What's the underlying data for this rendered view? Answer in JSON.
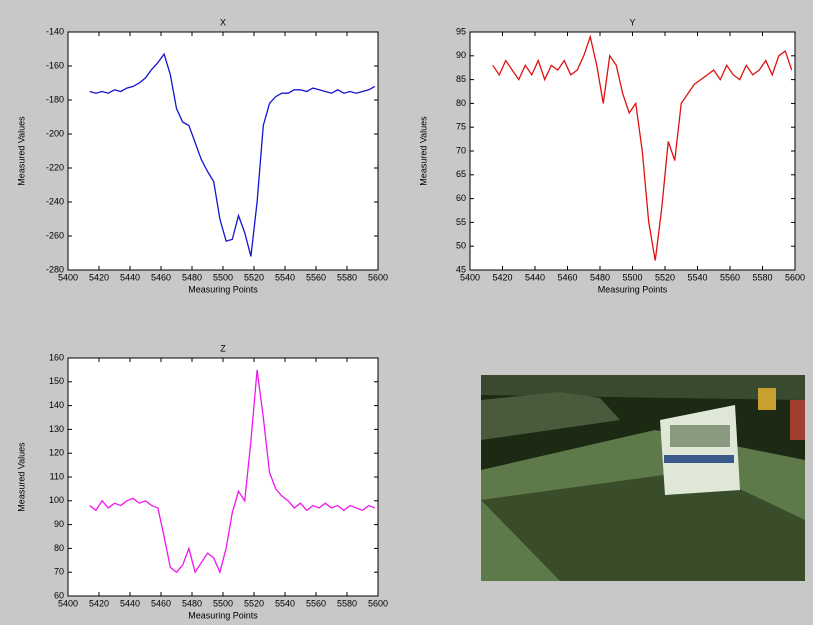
{
  "chart_data": [
    {
      "type": "line",
      "title": "X",
      "x_label": "Measuring Points",
      "y_label": "Measured Values",
      "x": [
        5414,
        5418,
        5422,
        5426,
        5430,
        5434,
        5438,
        5442,
        5446,
        5450,
        5454,
        5458,
        5462,
        5466,
        5470,
        5474,
        5478,
        5482,
        5486,
        5490,
        5494,
        5498,
        5502,
        5506,
        5510,
        5514,
        5518,
        5522,
        5526,
        5530,
        5534,
        5538,
        5542,
        5546,
        5550,
        5554,
        5558,
        5562,
        5566,
        5570,
        5574,
        5578,
        5582,
        5586,
        5590,
        5594,
        5598
      ],
      "series": [
        {
          "color": "#1414d2",
          "values": [
            -175,
            -176,
            -175,
            -176,
            -174,
            -175,
            -173,
            -172,
            -170,
            -167,
            -162,
            -158,
            -153,
            -165,
            -185,
            -193,
            -195,
            -205,
            -215,
            -222,
            -228,
            -250,
            -263,
            -262,
            -248,
            -258,
            -272,
            -240,
            -195,
            -182,
            -178,
            -176,
            -176,
            -174,
            -174,
            -175,
            -173,
            -174,
            -175,
            -176,
            -174,
            -176,
            -175,
            -176,
            -175,
            -174,
            -172
          ]
        }
      ],
      "xlim": [
        5400,
        5600
      ],
      "xticks": [
        5400,
        5420,
        5440,
        5460,
        5480,
        5500,
        5520,
        5540,
        5560,
        5580,
        5600
      ],
      "ylim": [
        -280,
        -140
      ],
      "yticks": [
        -280,
        -260,
        -240,
        -220,
        -200,
        -180,
        -160,
        -140
      ]
    },
    {
      "type": "line",
      "title": "Y",
      "x_label": "Measuring Points",
      "y_label": "Measured Values",
      "x": [
        5414,
        5418,
        5422,
        5426,
        5430,
        5434,
        5438,
        5442,
        5446,
        5450,
        5454,
        5458,
        5462,
        5466,
        5470,
        5474,
        5478,
        5482,
        5486,
        5490,
        5494,
        5498,
        5502,
        5506,
        5510,
        5514,
        5518,
        5522,
        5526,
        5530,
        5534,
        5538,
        5542,
        5546,
        5550,
        5554,
        5558,
        5562,
        5566,
        5570,
        5574,
        5578,
        5582,
        5586,
        5590,
        5594,
        5598
      ],
      "series": [
        {
          "color": "#e01010",
          "values": [
            88,
            86,
            89,
            87,
            85,
            88,
            86,
            89,
            85,
            88,
            87,
            89,
            86,
            87,
            90,
            94,
            88,
            80,
            90,
            88,
            82,
            78,
            80,
            70,
            55,
            47,
            58,
            72,
            68,
            80,
            82,
            84,
            85,
            86,
            87,
            85,
            88,
            86,
            85,
            88,
            86,
            87,
            89,
            86,
            90,
            91,
            87
          ]
        }
      ],
      "xlim": [
        5400,
        5600
      ],
      "xticks": [
        5400,
        5420,
        5440,
        5460,
        5480,
        5500,
        5520,
        5540,
        5560,
        5580,
        5600
      ],
      "ylim": [
        45,
        95
      ],
      "yticks": [
        45,
        50,
        55,
        60,
        65,
        70,
        75,
        80,
        85,
        90,
        95
      ]
    },
    {
      "type": "line",
      "title": "Z",
      "x_label": "Measuring Points",
      "y_label": "Measured Values",
      "x": [
        5414,
        5418,
        5422,
        5426,
        5430,
        5434,
        5438,
        5442,
        5446,
        5450,
        5454,
        5458,
        5462,
        5466,
        5470,
        5474,
        5478,
        5482,
        5486,
        5490,
        5494,
        5498,
        5502,
        5506,
        5510,
        5514,
        5518,
        5522,
        5526,
        5530,
        5534,
        5538,
        5542,
        5546,
        5550,
        5554,
        5558,
        5562,
        5566,
        5570,
        5574,
        5578,
        5582,
        5586,
        5590,
        5594,
        5598
      ],
      "series": [
        {
          "color": "#f014f0",
          "values": [
            98,
            96,
            100,
            97,
            99,
            98,
            100,
            101,
            99,
            100,
            98,
            97,
            85,
            72,
            70,
            73,
            80,
            70,
            74,
            78,
            76,
            70,
            80,
            95,
            104,
            100,
            125,
            155,
            135,
            112,
            105,
            102,
            100,
            97,
            99,
            96,
            98,
            97,
            99,
            97,
            98,
            96,
            98,
            97,
            96,
            98,
            97
          ]
        }
      ],
      "xlim": [
        5400,
        5600
      ],
      "xticks": [
        5400,
        5420,
        5440,
        5460,
        5480,
        5500,
        5520,
        5540,
        5560,
        5580,
        5600
      ],
      "ylim": [
        60,
        160
      ],
      "yticks": [
        60,
        70,
        80,
        90,
        100,
        110,
        120,
        130,
        140,
        150,
        160
      ]
    }
  ]
}
